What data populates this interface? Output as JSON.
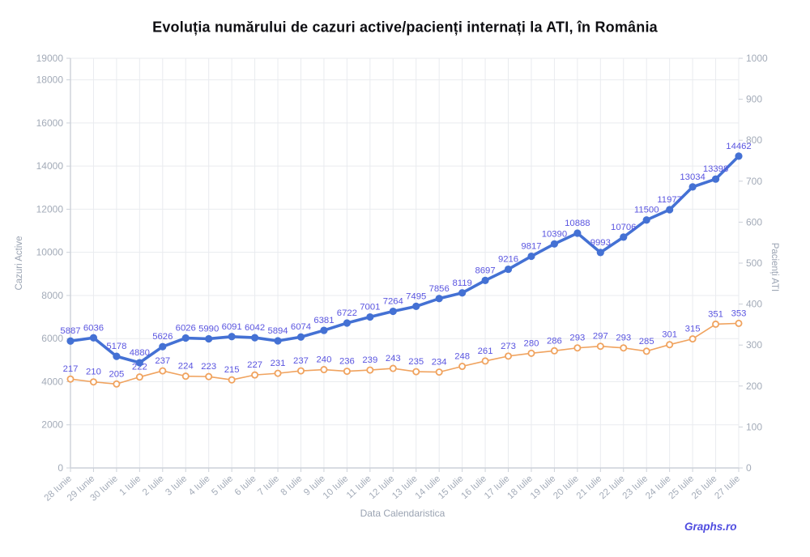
{
  "title": "Evoluția numărului de cazuri active/pacienți internați la ATI, în România",
  "watermark": "Graphs.ro",
  "chart_data": {
    "type": "line",
    "grid": true,
    "legend_position": "none",
    "data_label_color": "#5a55e0",
    "x_axis": {
      "label": "Data Calendaristica",
      "categories": [
        "28 Iunie",
        "29 Iunie",
        "30 Iunie",
        "1 Iulie",
        "2 Iulie",
        "3 Iulie",
        "4 Iulie",
        "5 Iulie",
        "6 Iulie",
        "7 Iulie",
        "8 Iulie",
        "9 Iulie",
        "10 Iulie",
        "11 Iulie",
        "12 Iulie",
        "13 Iulie",
        "14 Iulie",
        "15 Iulie",
        "16 Iulie",
        "17 Iulie",
        "18 Iulie",
        "19 Iulie",
        "20 Iulie",
        "21 Iulie",
        "22 Iulie",
        "23 Iulie",
        "24 Iulie",
        "25 Iulie",
        "26 Iulie",
        "27 Iulie"
      ]
    },
    "y_axis_left": {
      "label": "Cazuri Active",
      "min": 0,
      "max": 19000,
      "ticks": [
        0,
        2000,
        4000,
        6000,
        8000,
        10000,
        12000,
        14000,
        16000,
        18000,
        19000
      ]
    },
    "y_axis_right": {
      "label": "Pacienți ATI",
      "min": 0,
      "max": 1000,
      "ticks": [
        0,
        100,
        200,
        300,
        400,
        500,
        600,
        700,
        800,
        900,
        1000
      ]
    },
    "series": [
      {
        "name": "Cazuri Active",
        "axis": "left",
        "color": "#4471d4",
        "marker": "filled-circle",
        "line_width": 3.6,
        "values": [
          5887,
          6036,
          5178,
          4880,
          5626,
          6026,
          5990,
          6091,
          6042,
          5894,
          6074,
          6381,
          6722,
          7001,
          7264,
          7495,
          7856,
          8119,
          8697,
          9216,
          9817,
          10390,
          10888,
          9993,
          10706,
          11500,
          11977,
          13034,
          13398,
          14462
        ]
      },
      {
        "name": "Pacienți ATI",
        "axis": "right",
        "color": "#f0a35f",
        "marker": "open-circle",
        "line_width": 1.6,
        "values": [
          217,
          210,
          205,
          222,
          237,
          224,
          223,
          215,
          227,
          231,
          237,
          240,
          236,
          239,
          243,
          235,
          234,
          248,
          261,
          273,
          280,
          286,
          293,
          297,
          293,
          285,
          301,
          315,
          351,
          353
        ]
      }
    ]
  }
}
